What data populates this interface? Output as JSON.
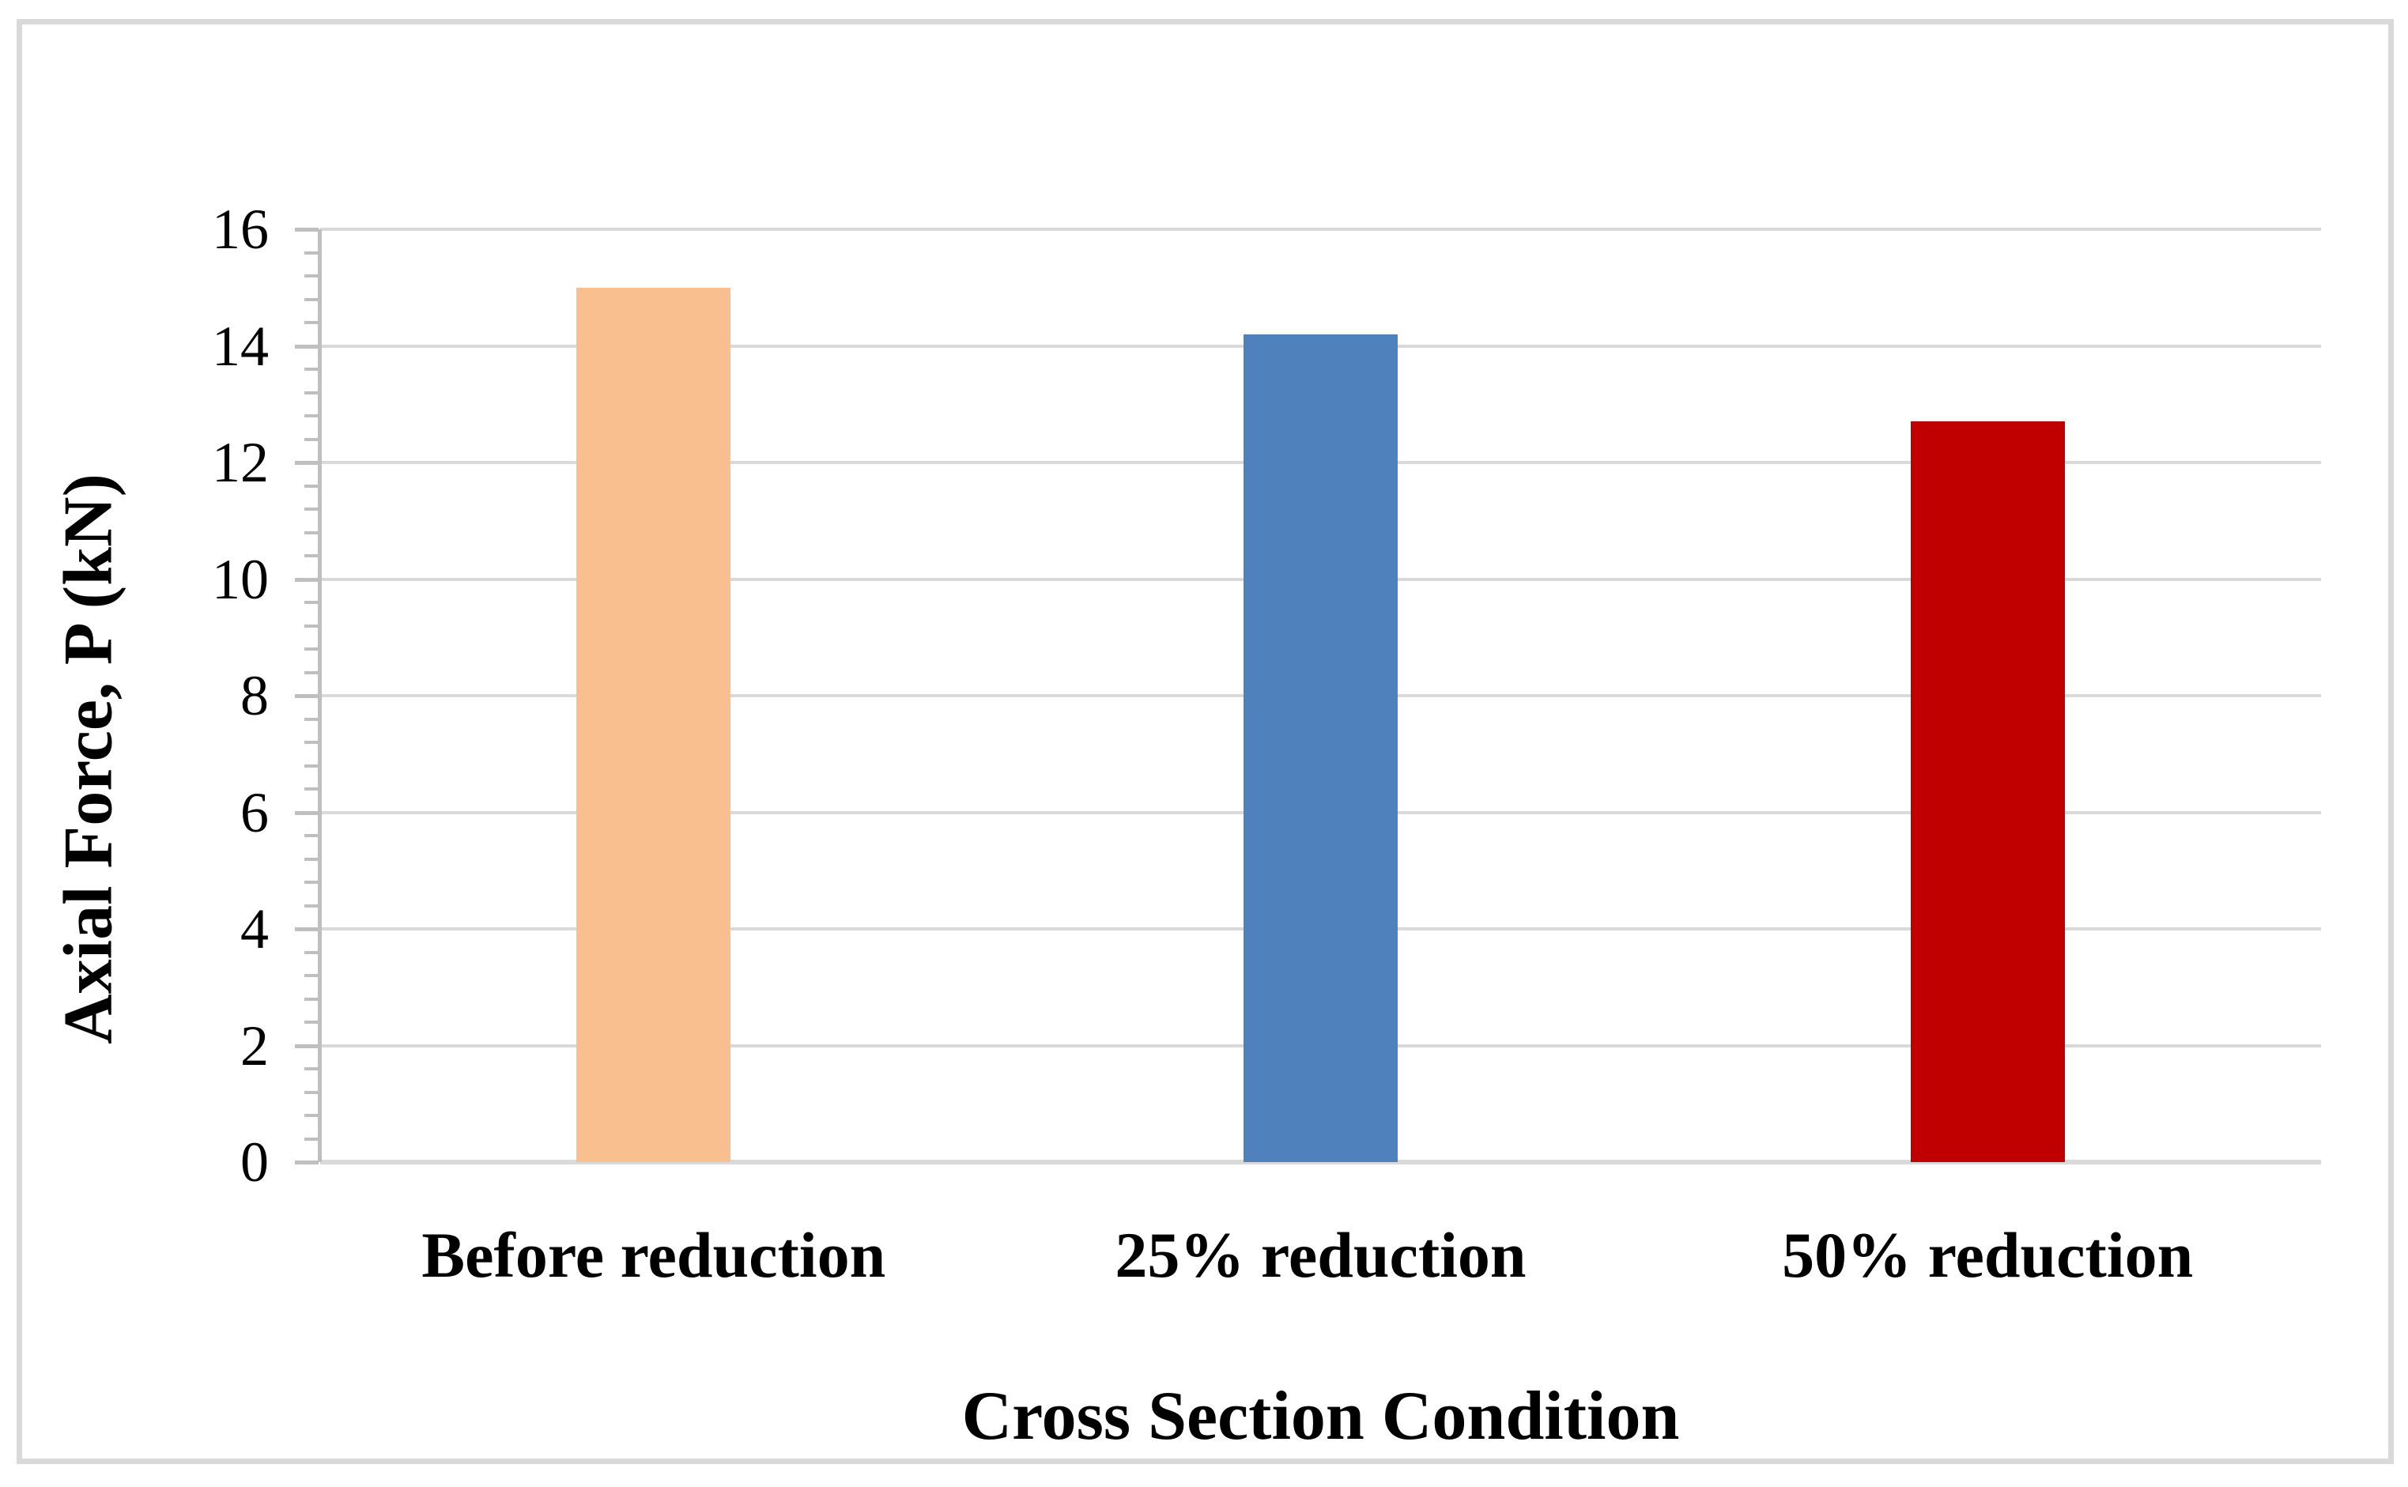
{
  "figure": {
    "background_color": "#FFFFFF",
    "border_color": "#D9D9D9"
  },
  "chart_data": {
    "type": "bar",
    "title": "",
    "xlabel": "Cross Section Condition",
    "ylabel": "Axial Force, P (kN)",
    "categories": [
      "Before reduction",
      "25% reduction",
      "50% reduction"
    ],
    "values": [
      15.0,
      14.2,
      12.7
    ],
    "bar_colors": [
      "#FABF8F",
      "#4F81BD",
      "#C00000"
    ],
    "ylim": [
      0,
      16
    ],
    "yticks": [
      0,
      2,
      4,
      6,
      8,
      10,
      12,
      14,
      16
    ],
    "minor_tick_step": 0.4,
    "grid": "horizontal major gridlines",
    "gridline_color": "#D9D9D9",
    "axis_color": "#BFBFBF",
    "text_color": "#000000",
    "legend_position": "none"
  }
}
